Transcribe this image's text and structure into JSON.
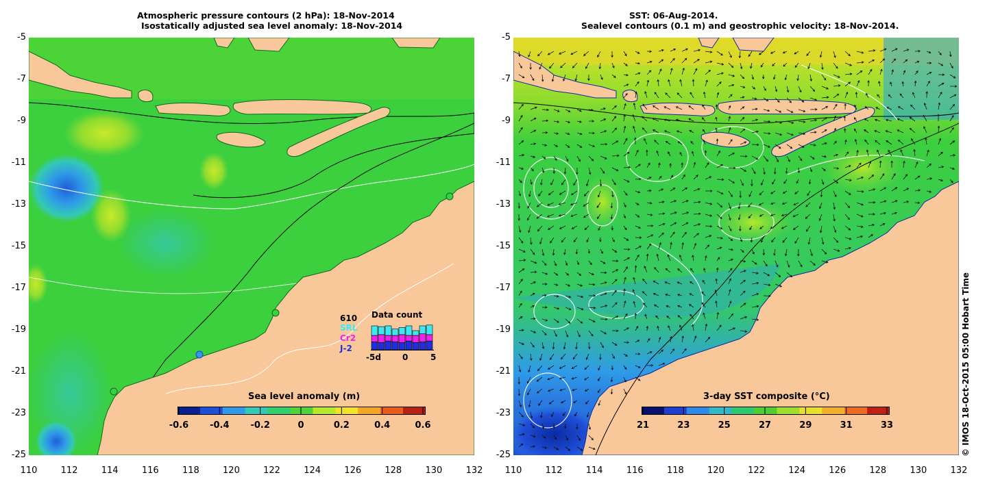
{
  "left_panel": {
    "title_line1": "Atmospheric pressure contours (2 hPa): 18-Nov-2014",
    "title_line2": "Isostatically adjusted sea level anomaly: 18-Nov-2014",
    "colorbar": {
      "title": "Sea level anomaly (m)",
      "ticks": [
        "-0.6",
        "-0.4",
        "-0.2",
        "0",
        "0.2",
        "0.4",
        "0.6"
      ],
      "colors": [
        "#0a1f8f",
        "#1f4fd8",
        "#2f9be8",
        "#33c9b4",
        "#2fd06a",
        "#4fd43a",
        "#b7e82a",
        "#f2e22a",
        "#f5a623",
        "#ea5b1c",
        "#b8200f"
      ]
    },
    "data_count": {
      "total": "610",
      "missions": [
        "SRL",
        "Cr2",
        "J-2"
      ],
      "mission_colors": [
        "#3fe8f0",
        "#f020f0",
        "#1f2fe0"
      ],
      "title": "Data count",
      "axis_ticks": [
        "-5d",
        "0",
        "5"
      ],
      "bars": [
        {
          "j2": 10,
          "cr2": 8,
          "srl": 12
        },
        {
          "j2": 9,
          "cr2": 10,
          "srl": 10
        },
        {
          "j2": 11,
          "cr2": 7,
          "srl": 12
        },
        {
          "j2": 10,
          "cr2": 8,
          "srl": 8
        },
        {
          "j2": 9,
          "cr2": 10,
          "srl": 9
        },
        {
          "j2": 11,
          "cr2": 7,
          "srl": 12
        },
        {
          "j2": 9,
          "cr2": 9,
          "srl": 6
        },
        {
          "j2": 10,
          "cr2": 10,
          "srl": 10
        },
        {
          "j2": 11,
          "cr2": 8,
          "srl": 12
        }
      ]
    }
  },
  "right_panel": {
    "title_line1": "SST: 06-Aug-2014.",
    "title_line2": "Sealevel contours (0.1 m) and geostrophic velocity: 18-Nov-2014.",
    "colorbar": {
      "title": "3-day SST composite (°C)",
      "ticks": [
        "21",
        "23",
        "25",
        "27",
        "29",
        "31",
        "33"
      ],
      "colors": [
        "#0a1070",
        "#1f3fd0",
        "#2f8be8",
        "#33b8c8",
        "#2fc86a",
        "#4fcf2f",
        "#9fde2a",
        "#e8e02a",
        "#f5b02a",
        "#ef6a1c",
        "#c0200f"
      ]
    }
  },
  "axes": {
    "lat_labels": [
      "-5",
      "-7",
      "-9",
      "-11",
      "-13",
      "-15",
      "-17",
      "-19",
      "-21",
      "-23",
      "-25"
    ],
    "lon_labels": [
      "110",
      "112",
      "114",
      "116",
      "118",
      "120",
      "122",
      "124",
      "126",
      "128",
      "130",
      "132"
    ]
  },
  "copyright": "© IMOS 18-Oct-2015 05:00 Hobart Time",
  "colors": {
    "land": "#f8c89a",
    "ocean_green": "#3ccf3e",
    "ocean_deep_green": "#2fbf4f"
  }
}
